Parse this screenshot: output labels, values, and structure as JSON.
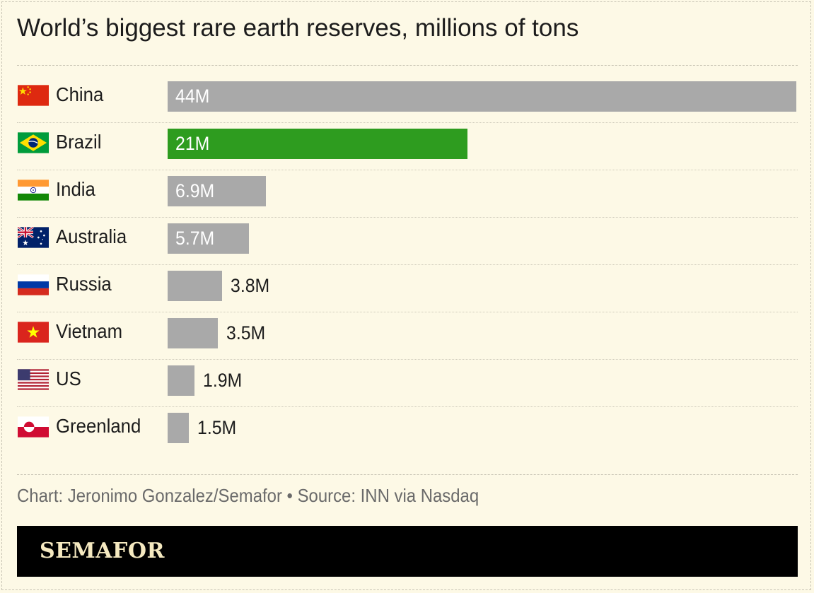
{
  "title": "World’s biggest rare earth reserves, millions of tons",
  "credit": "Chart: Jeronimo Gonzalez/Semafor • Source: INN via Nasdaq",
  "footer": {
    "logo": "SEMAFOR"
  },
  "colors": {
    "default_bar": "#a9a9a9",
    "highlight_bar": "#2e9c1f",
    "background": "#fdf9e6"
  },
  "chart_data": {
    "type": "bar",
    "orientation": "horizontal",
    "title": "World’s biggest rare earth reserves, millions of tons",
    "xlabel": "",
    "ylabel": "",
    "xlim": [
      0,
      44
    ],
    "grid": false,
    "categories": [
      "China",
      "Brazil",
      "India",
      "Australia",
      "Russia",
      "Vietnam",
      "US",
      "Greenland"
    ],
    "values": [
      44,
      21,
      6.9,
      5.7,
      3.8,
      3.5,
      1.9,
      1.5
    ],
    "labels": [
      "44M",
      "21M",
      "6.9M",
      "5.7M",
      "3.8M",
      "3.5M",
      "1.9M",
      "1.5M"
    ],
    "highlight": "Brazil",
    "flag_icons": [
      "china-flag-icon",
      "brazil-flag-icon",
      "india-flag-icon",
      "australia-flag-icon",
      "russia-flag-icon",
      "vietnam-flag-icon",
      "us-flag-icon",
      "greenland-flag-icon"
    ]
  }
}
